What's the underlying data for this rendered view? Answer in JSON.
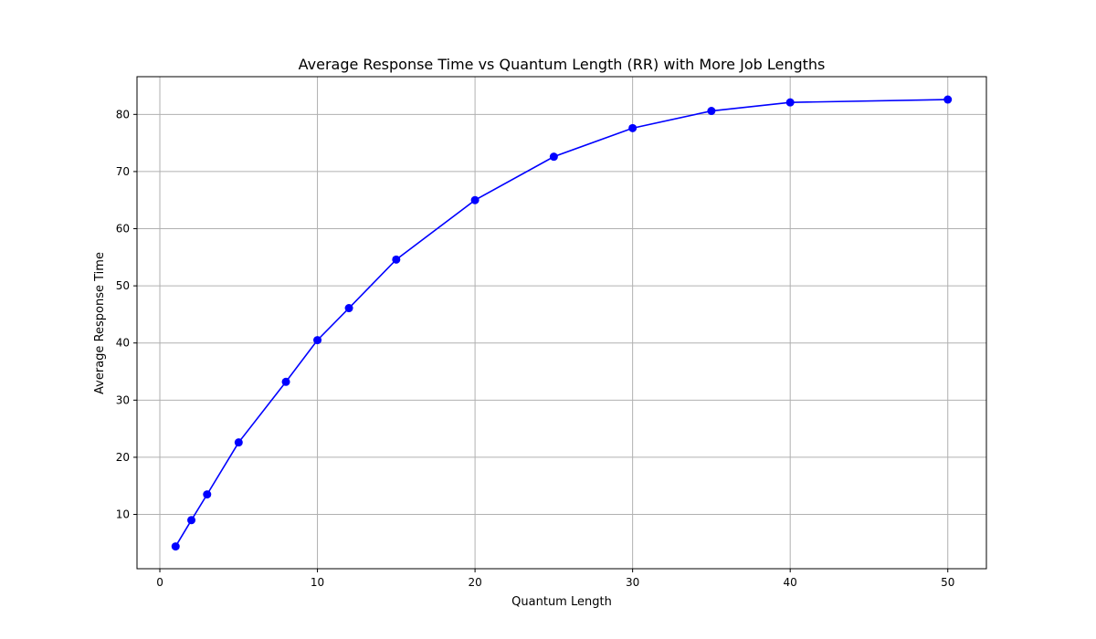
{
  "chart_data": {
    "type": "line",
    "title": "Average Response Time vs Quantum Length (RR) with More Job Lengths",
    "xlabel": "Quantum Length",
    "ylabel": "Average Response Time",
    "xlim": [
      -1.45,
      52.45
    ],
    "ylim": [
      0.5,
      86.6
    ],
    "xticks": [
      0,
      10,
      20,
      30,
      40,
      50
    ],
    "yticks": [
      10,
      20,
      30,
      40,
      50,
      60,
      70,
      80
    ],
    "grid": true,
    "series": [
      {
        "color": "#0000ff",
        "marker": "circle",
        "x": [
          1,
          2,
          3,
          5,
          8,
          10,
          12,
          15,
          20,
          25,
          30,
          35,
          40,
          50
        ],
        "y": [
          4.4,
          9.0,
          13.5,
          22.6,
          33.2,
          40.5,
          46.1,
          54.6,
          65.0,
          72.6,
          77.6,
          80.6,
          82.1,
          82.6
        ]
      }
    ]
  }
}
